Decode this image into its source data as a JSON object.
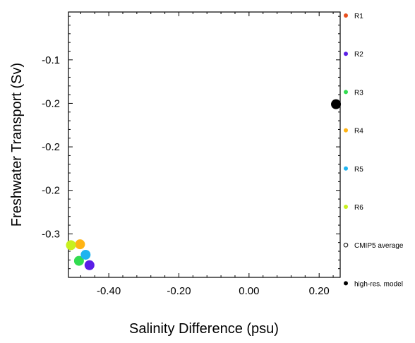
{
  "chart_data": {
    "type": "scatter",
    "xlabel": "Salinity Difference (psu)",
    "ylabel": "Freshwater Transport (Sv)",
    "xlim": [
      -0.515,
      0.26
    ],
    "ylim": [
      -0.35,
      -0.045
    ],
    "x_major_ticks": [
      -0.4,
      -0.2,
      0.0,
      0.2
    ],
    "x_tick_labels": [
      "-0.40",
      "-0.20",
      "0.00",
      "0.20"
    ],
    "y_major_ticks": [
      -0.1,
      -0.15,
      -0.2,
      -0.25,
      -0.3
    ],
    "y_tick_labels": [
      "-0.1",
      "-0.2",
      "-0.2",
      "-0.2",
      "-0.3"
    ],
    "grid": false,
    "legend_position": "right",
    "series": [
      {
        "name": "R1",
        "color": "#e8501e",
        "points": []
      },
      {
        "name": "R2",
        "color": "#5a1ee6",
        "points": [
          {
            "x": -0.455,
            "y": -0.336
          }
        ]
      },
      {
        "name": "R3",
        "color": "#32dc50",
        "points": [
          {
            "x": -0.485,
            "y": -0.331
          }
        ]
      },
      {
        "name": "R4",
        "color": "#ffb414",
        "points": [
          {
            "x": -0.482,
            "y": -0.312
          }
        ]
      },
      {
        "name": "R5",
        "color": "#1eb4f0",
        "points": [
          {
            "x": -0.466,
            "y": -0.324
          }
        ]
      },
      {
        "name": "R6",
        "color": "#c8f01e",
        "points": [
          {
            "x": -0.508,
            "y": -0.313
          }
        ]
      },
      {
        "name": "CMIP5 average",
        "color": "#000000",
        "marker": "hollow",
        "points": []
      },
      {
        "name": "high-res. model",
        "color": "#000000",
        "points": [
          {
            "x": 0.248,
            "y": -0.151
          }
        ]
      }
    ]
  }
}
